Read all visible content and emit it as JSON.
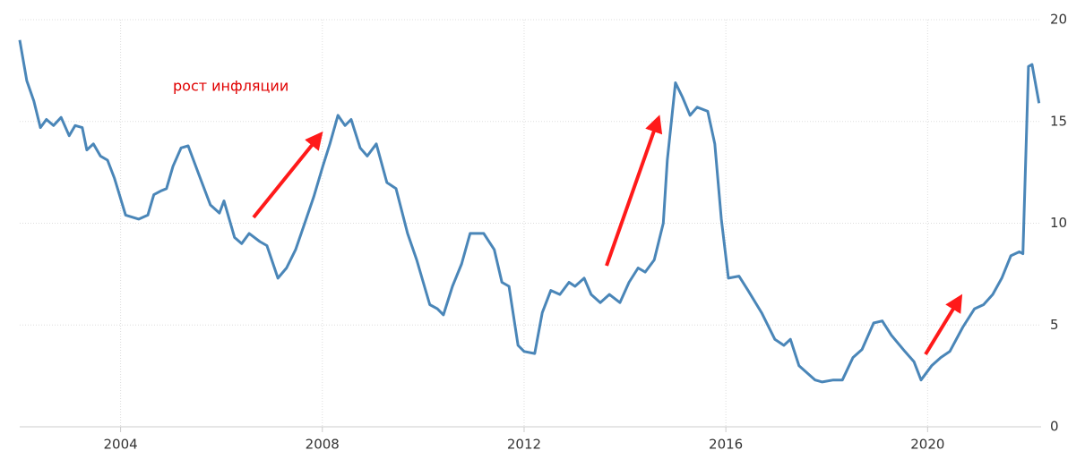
{
  "chart_data": {
    "type": "line",
    "annotation": "рост инфляции",
    "color": "#4a86b8",
    "x": [
      2002.0,
      2002.14,
      2002.28,
      2002.41,
      2002.53,
      2002.67,
      2002.82,
      2002.98,
      2003.1,
      2003.24,
      2003.33,
      2003.46,
      2003.6,
      2003.74,
      2003.88,
      2004.1,
      2004.36,
      2004.54,
      2004.66,
      2004.81,
      2004.91,
      2005.04,
      2005.2,
      2005.34,
      2005.55,
      2005.78,
      2005.96,
      2006.05,
      2006.26,
      2006.4,
      2006.55,
      2006.76,
      2006.9,
      2007.12,
      2007.29,
      2007.47,
      2007.65,
      2007.83,
      2008.01,
      2008.15,
      2008.31,
      2008.45,
      2008.57,
      2008.75,
      2008.89,
      2009.07,
      2009.28,
      2009.46,
      2009.69,
      2009.87,
      2010.13,
      2010.28,
      2010.4,
      2010.58,
      2010.76,
      2010.93,
      2011.2,
      2011.41,
      2011.56,
      2011.7,
      2011.88,
      2012.0,
      2012.21,
      2012.36,
      2012.53,
      2012.71,
      2012.89,
      2013.01,
      2013.19,
      2013.33,
      2013.51,
      2013.69,
      2013.9,
      2014.08,
      2014.26,
      2014.4,
      2014.58,
      2014.76,
      2014.84,
      2015.0,
      2015.14,
      2015.29,
      2015.43,
      2015.64,
      2015.78,
      2015.91,
      2016.05,
      2016.26,
      2016.44,
      2016.71,
      2016.97,
      2017.15,
      2017.28,
      2017.45,
      2017.77,
      2017.91,
      2018.13,
      2018.31,
      2018.52,
      2018.7,
      2018.93,
      2019.1,
      2019.28,
      2019.55,
      2019.73,
      2019.87,
      2020.08,
      2020.26,
      2020.44,
      2020.7,
      2020.93,
      2021.11,
      2021.29,
      2021.47,
      2021.65,
      2021.82,
      2021.89,
      2022.0,
      2022.07,
      2022.21
    ],
    "values": [
      19.0,
      17.0,
      16.0,
      14.7,
      15.1,
      14.8,
      15.2,
      14.3,
      14.8,
      14.7,
      13.6,
      13.9,
      13.3,
      13.1,
      12.2,
      10.4,
      10.2,
      10.4,
      11.4,
      11.6,
      11.7,
      12.8,
      13.7,
      13.8,
      12.4,
      10.9,
      10.5,
      11.1,
      9.3,
      9.0,
      9.5,
      9.1,
      8.9,
      7.3,
      7.8,
      8.7,
      10.0,
      11.3,
      12.8,
      13.9,
      15.3,
      14.8,
      15.1,
      13.7,
      13.3,
      13.9,
      12.0,
      11.7,
      9.5,
      8.2,
      6.0,
      5.8,
      5.5,
      6.9,
      8.0,
      9.5,
      9.5,
      8.7,
      7.1,
      6.9,
      4.0,
      3.7,
      3.6,
      5.6,
      6.7,
      6.5,
      7.1,
      6.9,
      7.3,
      6.5,
      6.1,
      6.5,
      6.1,
      7.1,
      7.8,
      7.6,
      8.2,
      10.0,
      13.1,
      16.9,
      16.2,
      15.3,
      15.7,
      15.5,
      13.9,
      10.2,
      7.3,
      7.4,
      6.7,
      5.6,
      4.3,
      4.0,
      4.3,
      3.0,
      2.3,
      2.2,
      2.3,
      2.3,
      3.4,
      3.8,
      5.1,
      5.2,
      4.5,
      3.7,
      3.2,
      2.3,
      3.0,
      3.4,
      3.7,
      4.9,
      5.8,
      6.0,
      6.5,
      7.3,
      8.4,
      8.6,
      8.5,
      17.7,
      17.8,
      15.9
    ],
    "xlim": [
      2002,
      2022.25
    ],
    "xticks": [
      2004,
      2008,
      2012,
      2016,
      2020
    ],
    "ylim": [
      0,
      20
    ],
    "yticks": [
      0,
      5,
      10,
      15,
      20
    ],
    "grid": true
  }
}
